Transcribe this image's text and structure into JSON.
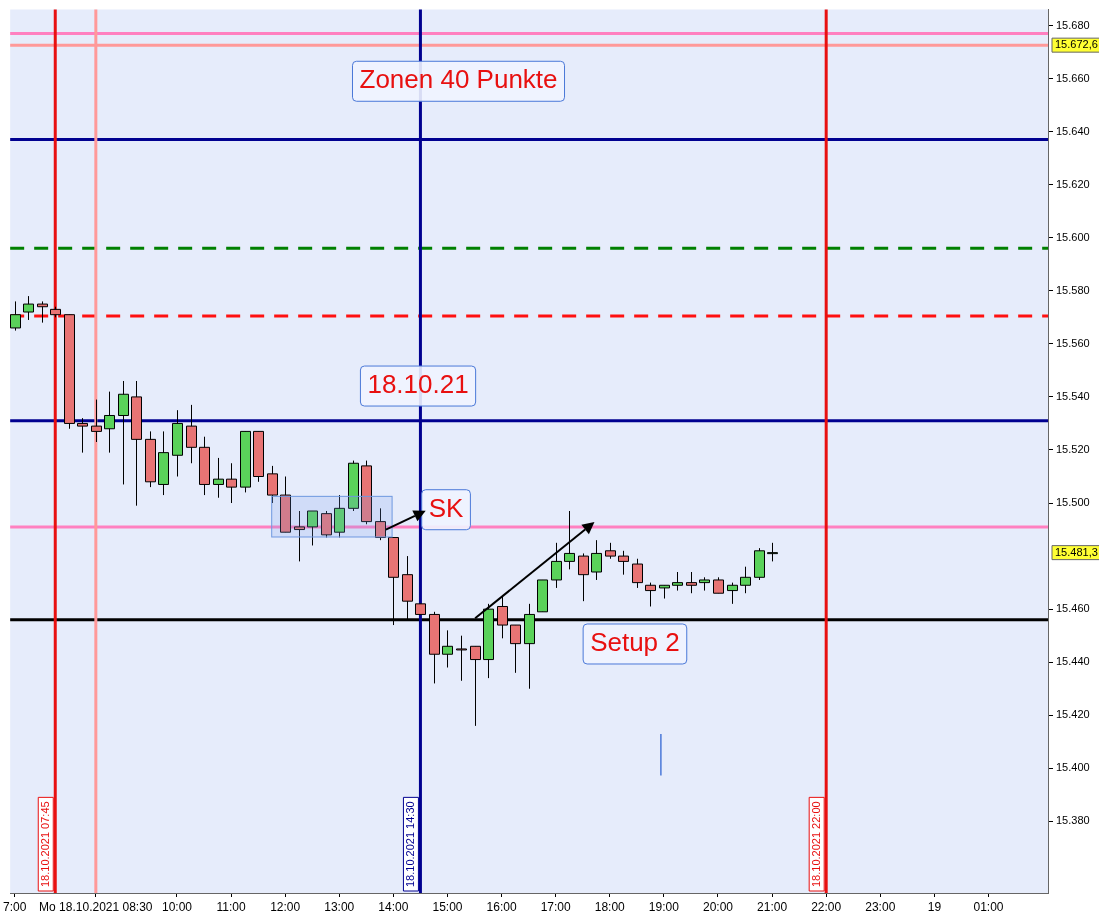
{
  "chart_data": {
    "type": "candlestick",
    "x": [
      "2021-10-18T07:00",
      "2021-10-18T07:15",
      "2021-10-18T07:30",
      "2021-10-18T07:45",
      "2021-10-18T08:00",
      "2021-10-18T08:15",
      "2021-10-18T08:30",
      "2021-10-18T08:45",
      "2021-10-18T09:00",
      "2021-10-18T09:15",
      "2021-10-18T09:30",
      "2021-10-18T09:45",
      "2021-10-18T10:00",
      "2021-10-18T10:15",
      "2021-10-18T10:30",
      "2021-10-18T10:45",
      "2021-10-18T11:00",
      "2021-10-18T11:15",
      "2021-10-18T11:30",
      "2021-10-18T11:45",
      "2021-10-18T12:00",
      "2021-10-18T12:15",
      "2021-10-18T12:30",
      "2021-10-18T12:45",
      "2021-10-18T13:00",
      "2021-10-18T13:15",
      "2021-10-18T13:30",
      "2021-10-18T13:45",
      "2021-10-18T14:00",
      "2021-10-18T14:15",
      "2021-10-18T14:30",
      "2021-10-18T14:45",
      "2021-10-18T15:00",
      "2021-10-18T15:15",
      "2021-10-18T15:30",
      "2021-10-18T15:45",
      "2021-10-18T16:00",
      "2021-10-18T16:15",
      "2021-10-18T16:30",
      "2021-10-18T16:45",
      "2021-10-18T17:00",
      "2021-10-18T17:15",
      "2021-10-18T17:30",
      "2021-10-18T17:45",
      "2021-10-18T18:00",
      "2021-10-18T18:15",
      "2021-10-18T18:30",
      "2021-10-18T18:45",
      "2021-10-18T19:00",
      "2021-10-18T19:15",
      "2021-10-18T19:30",
      "2021-10-18T19:45",
      "2021-10-18T20:00",
      "2021-10-18T20:15",
      "2021-10-18T20:30",
      "2021-10-18T20:45",
      "2021-10-18T21:00"
    ],
    "ohlc": [
      [
        15566,
        15576,
        15565,
        15571
      ],
      [
        15572,
        15578,
        15569,
        15575
      ],
      [
        15575,
        15576,
        15568,
        15574
      ],
      [
        15573,
        15574,
        15570,
        15571
      ],
      [
        15571,
        15571,
        15528,
        15530
      ],
      [
        15530,
        15532,
        15519,
        15529
      ],
      [
        15529,
        15539,
        15523,
        15527
      ],
      [
        15528,
        15542,
        15519,
        15533
      ],
      [
        15533,
        15546,
        15507,
        15541
      ],
      [
        15540,
        15546,
        15499,
        15524
      ],
      [
        15524,
        15527,
        15506,
        15508
      ],
      [
        15507,
        15527,
        15503,
        15519
      ],
      [
        15518,
        15535,
        15510,
        15530
      ],
      [
        15529,
        15537,
        15515,
        15521
      ],
      [
        15521,
        15525,
        15503,
        15507
      ],
      [
        15507,
        15517,
        15502,
        15509
      ],
      [
        15509,
        15515,
        15500,
        15506
      ],
      [
        15506,
        15527,
        15504,
        15527
      ],
      [
        15527,
        15527,
        15508,
        15510
      ],
      [
        15511,
        15514,
        15500,
        15503
      ],
      [
        15503,
        15510,
        15489,
        15489
      ],
      [
        15491,
        15497,
        15478,
        15490
      ],
      [
        15491,
        15497,
        15484,
        15497
      ],
      [
        15496,
        15497,
        15487,
        15488
      ],
      [
        15489,
        15503,
        15487,
        15498
      ],
      [
        15498,
        15516,
        15497,
        15515
      ],
      [
        15514,
        15516,
        15492,
        15493
      ],
      [
        15493,
        15498,
        15486,
        15487
      ],
      [
        15487,
        15487,
        15454,
        15472
      ],
      [
        15473,
        15480,
        15456,
        15463
      ],
      [
        15462,
        15462,
        15458,
        15458
      ],
      [
        15458,
        15459,
        15432,
        15443
      ],
      [
        15443,
        15452,
        15438,
        15446
      ],
      [
        15445,
        15450,
        15433,
        15445
      ],
      [
        15446,
        15446,
        15416,
        15441
      ],
      [
        15441,
        15462,
        15434,
        15460
      ],
      [
        15461,
        15465,
        15449,
        15454
      ],
      [
        15454,
        15454,
        15436,
        15447
      ],
      [
        15447,
        15462,
        15430,
        15458
      ],
      [
        15459,
        15471,
        15459,
        15471
      ],
      [
        15471,
        15485,
        15468,
        15478
      ],
      [
        15478,
        15497,
        15475,
        15481
      ],
      [
        15480,
        15481,
        15463,
        15473
      ],
      [
        15474,
        15486,
        15471,
        15481
      ],
      [
        15482,
        15485,
        15479,
        15480
      ],
      [
        15480,
        15482,
        15473,
        15478
      ],
      [
        15477,
        15479,
        15468,
        15470
      ],
      [
        15469,
        15470,
        15461,
        15467
      ],
      [
        15468,
        15469,
        15464,
        15469
      ],
      [
        15469,
        15474,
        15467,
        15470
      ],
      [
        15470,
        15474,
        15466,
        15469
      ],
      [
        15470,
        15472,
        15467,
        15471
      ],
      [
        15471,
        15472,
        15466,
        15466
      ],
      [
        15467,
        15470,
        15462,
        15469
      ],
      [
        15469,
        15476,
        15466,
        15472
      ],
      [
        15472,
        15483,
        15471,
        15482
      ],
      [
        15481.3,
        15485,
        15478,
        15481.3
      ]
    ],
    "colors": [
      "#5ad25a",
      "#5ad25a",
      "#e87474",
      "#e87474",
      "#e87474",
      "#e87474",
      "#e87474",
      "#5ad25a",
      "#5ad25a",
      "#e87474",
      "#e87474",
      "#5ad25a",
      "#5ad25a",
      "#e87474",
      "#e87474",
      "#5ad25a",
      "#e87474",
      "#5ad25a",
      "#e87474",
      "#e87474",
      "#e87474",
      "#e87474",
      "#5ad25a",
      "#e87474",
      "#5ad25a",
      "#5ad25a",
      "#e87474",
      "#e87474",
      "#e87474",
      "#e87474",
      "#e87474",
      "#e87474",
      "#5ad25a",
      "#e87474",
      "#e87474",
      "#5ad25a",
      "#e87474",
      "#e87474",
      "#5ad25a",
      "#5ad25a",
      "#5ad25a",
      "#5ad25a",
      "#e87474",
      "#5ad25a",
      "#e87474",
      "#e87474",
      "#e87474",
      "#e87474",
      "#5ad25a",
      "#5ad25a",
      "#e87474",
      "#5ad25a",
      "#e87474",
      "#5ad25a",
      "#5ad25a",
      "#5ad25a",
      "#5ad25a"
    ],
    "xlim": [
      "2021-10-18T06:55",
      "2021-10-19T02:06"
    ],
    "xticks": [
      {
        "value": "2021-10-18T07:00",
        "label": "7:00"
      },
      {
        "value": "2021-10-18T08:30",
        "label": "Mo 18.10.2021 08:30"
      },
      {
        "value": "2021-10-18T10:00",
        "label": "10:00"
      },
      {
        "value": "2021-10-18T11:00",
        "label": "11:00"
      },
      {
        "value": "2021-10-18T12:00",
        "label": "12:00"
      },
      {
        "value": "2021-10-18T13:00",
        "label": "13:00"
      },
      {
        "value": "2021-10-18T14:00",
        "label": "14:00"
      },
      {
        "value": "2021-10-18T15:00",
        "label": "15:00"
      },
      {
        "value": "2021-10-18T16:00",
        "label": "16:00"
      },
      {
        "value": "2021-10-18T17:00",
        "label": "17:00"
      },
      {
        "value": "2021-10-18T18:00",
        "label": "18:00"
      },
      {
        "value": "2021-10-18T19:00",
        "label": "19:00"
      },
      {
        "value": "2021-10-18T20:00",
        "label": "20:00"
      },
      {
        "value": "2021-10-18T21:00",
        "label": "21:00"
      },
      {
        "value": "2021-10-18T22:00",
        "label": "22:00"
      },
      {
        "value": "2021-10-18T23:00",
        "label": "23:00"
      },
      {
        "value": "2021-10-19",
        "label": "19"
      },
      {
        "value": "2021-10-19T01:00",
        "label": "01:00"
      }
    ],
    "ylim": [
      15353,
      15686
    ],
    "yticks": [
      {
        "value": 15380,
        "label": "15.380"
      },
      {
        "value": 15400,
        "label": "15.400"
      },
      {
        "value": 15420,
        "label": "15.420"
      },
      {
        "value": 15440,
        "label": "15.440"
      },
      {
        "value": 15460,
        "label": "15.460"
      },
      {
        "value": 15500,
        "label": "15.500"
      },
      {
        "value": 15520,
        "label": "15.520"
      },
      {
        "value": 15540,
        "label": "15.540"
      },
      {
        "value": 15560,
        "label": "15.560"
      },
      {
        "value": 15580,
        "label": "15.580"
      },
      {
        "value": 15600,
        "label": "15.600"
      },
      {
        "value": 15620,
        "label": "15.620"
      },
      {
        "value": 15640,
        "label": "15.640"
      },
      {
        "value": 15660,
        "label": "15.660"
      },
      {
        "value": 15680,
        "label": "15.680"
      }
    ],
    "grid": false,
    "legend": false,
    "ref_lines": [
      {
        "axis": "y",
        "value": 15677,
        "color": "#ff80c0"
      },
      {
        "axis": "y",
        "value": 15672.6,
        "label": "15.672,6",
        "color": "#ff9999"
      },
      {
        "axis": "y",
        "value": 15637,
        "color": "#000090"
      },
      {
        "axis": "y",
        "value": 15596,
        "color": "#008000",
        "line_style": "dashed"
      },
      {
        "axis": "y",
        "value": 15570.5,
        "color": "#ff1010",
        "line_style": "dashed"
      },
      {
        "axis": "y",
        "value": 15531,
        "color": "#000090"
      },
      {
        "axis": "y",
        "value": 15491,
        "color": "#ff80c0"
      },
      {
        "axis": "y",
        "value": 15456,
        "color": "#000000"
      },
      {
        "axis": "x",
        "value": "2021-10-18T07:45",
        "label": "18.10.2021 07:45",
        "color": "#e81010"
      },
      {
        "axis": "x",
        "value": "2021-10-18T08:30",
        "color": "#ff9999"
      },
      {
        "axis": "x",
        "value": "2021-10-18T14:30",
        "label": "18.10.2021 14:30",
        "color": "#000090"
      },
      {
        "axis": "x",
        "value": "2021-10-18T22:00",
        "label": "18.10.2021 22:00",
        "color": "#e81010"
      }
    ],
    "annotations": [
      "Zonen 40 Punkte",
      "18.10.21",
      {
        "text": "SK",
        "x": "2021-10-18T13:45",
        "y": 15490
      },
      "Setup 2",
      "15.481,3"
    ]
  }
}
